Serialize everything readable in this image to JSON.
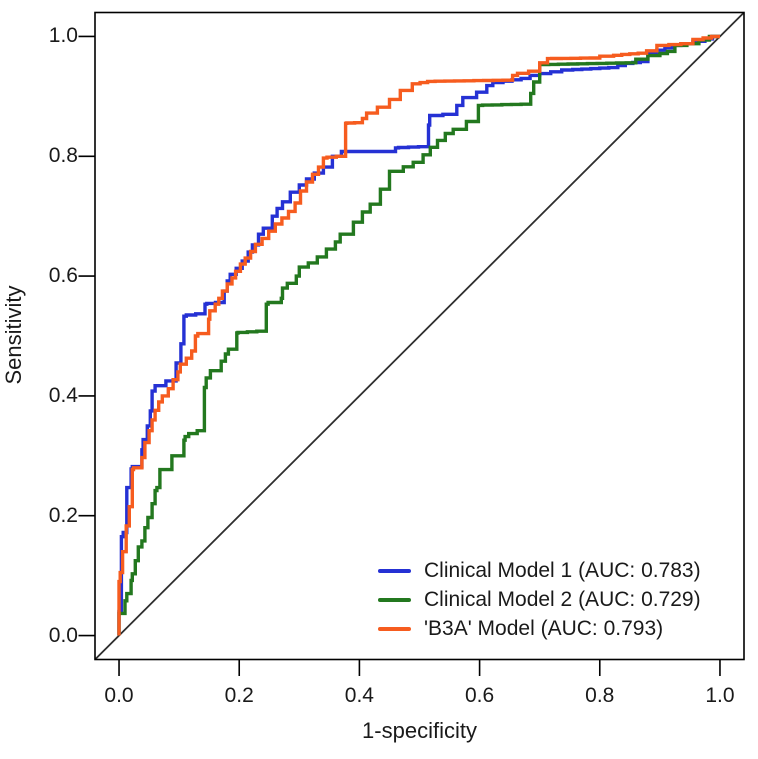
{
  "chart_data": {
    "type": "line",
    "subtype": "roc-step-curves",
    "title": "",
    "xlabel": "1-specificity",
    "ylabel": "Sensitivity",
    "xlim": [
      -0.04,
      1.04
    ],
    "ylim": [
      -0.04,
      1.04
    ],
    "grid": false,
    "legend_position": "bottom-right-inside",
    "axes": {
      "x": {
        "ticks": [
          0.0,
          0.2,
          0.4,
          0.6,
          0.8,
          1.0
        ],
        "tick_labels": [
          "0.0",
          "0.2",
          "0.4",
          "0.6",
          "0.8",
          "1.0"
        ]
      },
      "y": {
        "ticks": [
          0.0,
          0.2,
          0.4,
          0.6,
          0.8,
          1.0
        ],
        "tick_labels": [
          "0.0",
          "0.2",
          "0.4",
          "0.6",
          "0.8",
          "1.0"
        ]
      }
    },
    "reference_line": {
      "name": "chance-diagonal",
      "from": [
        0,
        0
      ],
      "to": [
        1,
        1
      ],
      "color": "#2e2e2e"
    },
    "colors": {
      "frame": "#000000",
      "text": "#1a1a1a",
      "background": "#ffffff"
    },
    "series": [
      {
        "name": "Clinical Model 1",
        "auc": 0.783,
        "label": "Clinical Model 1 (AUC: 0.783)",
        "color": "#2531d4",
        "points": [
          [
            0,
            0
          ],
          [
            0.004,
            0.04
          ],
          [
            0.004,
            0.1
          ],
          [
            0.007,
            0.165
          ],
          [
            0.013,
            0.172
          ],
          [
            0.013,
            0.215
          ],
          [
            0.02,
            0.247
          ],
          [
            0.022,
            0.278
          ],
          [
            0.038,
            0.282
          ],
          [
            0.04,
            0.31
          ],
          [
            0.047,
            0.327
          ],
          [
            0.052,
            0.35
          ],
          [
            0.055,
            0.375
          ],
          [
            0.06,
            0.408
          ],
          [
            0.078,
            0.417
          ],
          [
            0.095,
            0.425
          ],
          [
            0.103,
            0.455
          ],
          [
            0.108,
            0.487
          ],
          [
            0.112,
            0.533
          ],
          [
            0.143,
            0.537
          ],
          [
            0.146,
            0.553
          ],
          [
            0.175,
            0.556
          ],
          [
            0.18,
            0.575
          ],
          [
            0.185,
            0.592
          ],
          [
            0.195,
            0.603
          ],
          [
            0.205,
            0.613
          ],
          [
            0.215,
            0.625
          ],
          [
            0.222,
            0.64
          ],
          [
            0.232,
            0.652
          ],
          [
            0.24,
            0.67
          ],
          [
            0.255,
            0.68
          ],
          [
            0.263,
            0.7
          ],
          [
            0.272,
            0.713
          ],
          [
            0.285,
            0.724
          ],
          [
            0.3,
            0.74
          ],
          [
            0.312,
            0.752
          ],
          [
            0.325,
            0.762
          ],
          [
            0.34,
            0.772
          ],
          [
            0.355,
            0.782
          ],
          [
            0.37,
            0.8
          ],
          [
            0.383,
            0.808
          ],
          [
            0.46,
            0.808
          ],
          [
            0.465,
            0.814
          ],
          [
            0.515,
            0.816
          ],
          [
            0.517,
            0.852
          ],
          [
            0.539,
            0.868
          ],
          [
            0.562,
            0.87
          ],
          [
            0.572,
            0.885
          ],
          [
            0.595,
            0.898
          ],
          [
            0.612,
            0.907
          ],
          [
            0.622,
            0.918
          ],
          [
            0.639,
            0.923
          ],
          [
            0.684,
            0.93
          ],
          [
            0.7,
            0.935
          ],
          [
            0.755,
            0.944
          ],
          [
            0.83,
            0.948
          ],
          [
            0.855,
            0.955
          ],
          [
            0.88,
            0.958
          ],
          [
            0.895,
            0.973
          ],
          [
            0.935,
            0.985
          ],
          [
            0.955,
            0.988
          ],
          [
            0.975,
            0.992
          ],
          [
            1,
            1
          ]
        ]
      },
      {
        "name": "Clinical Model 2",
        "auc": 0.729,
        "label": "Clinical Model 2 (AUC: 0.729)",
        "color": "#23781f",
        "points": [
          [
            0,
            0
          ],
          [
            0.01,
            0.037
          ],
          [
            0.013,
            0.058
          ],
          [
            0.02,
            0.07
          ],
          [
            0.022,
            0.092
          ],
          [
            0.027,
            0.103
          ],
          [
            0.027,
            0.115
          ],
          [
            0.032,
            0.125
          ],
          [
            0.032,
            0.137
          ],
          [
            0.038,
            0.148
          ],
          [
            0.043,
            0.158
          ],
          [
            0.043,
            0.17
          ],
          [
            0.048,
            0.18
          ],
          [
            0.048,
            0.192
          ],
          [
            0.055,
            0.197
          ],
          [
            0.055,
            0.213
          ],
          [
            0.06,
            0.22
          ],
          [
            0.063,
            0.242
          ],
          [
            0.068,
            0.247
          ],
          [
            0.068,
            0.27
          ],
          [
            0.072,
            0.277
          ],
          [
            0.088,
            0.277
          ],
          [
            0.088,
            0.297
          ],
          [
            0.108,
            0.3
          ],
          [
            0.11,
            0.326
          ],
          [
            0.116,
            0.332
          ],
          [
            0.13,
            0.337
          ],
          [
            0.142,
            0.342
          ],
          [
            0.145,
            0.414
          ],
          [
            0.152,
            0.43
          ],
          [
            0.17,
            0.442
          ],
          [
            0.177,
            0.458
          ],
          [
            0.182,
            0.47
          ],
          [
            0.196,
            0.478
          ],
          [
            0.198,
            0.505
          ],
          [
            0.245,
            0.508
          ],
          [
            0.248,
            0.553
          ],
          [
            0.27,
            0.556
          ],
          [
            0.272,
            0.563
          ],
          [
            0.28,
            0.58
          ],
          [
            0.295,
            0.588
          ],
          [
            0.3,
            0.6
          ],
          [
            0.315,
            0.615
          ],
          [
            0.33,
            0.622
          ],
          [
            0.345,
            0.632
          ],
          [
            0.36,
            0.645
          ],
          [
            0.368,
            0.657
          ],
          [
            0.39,
            0.67
          ],
          [
            0.405,
            0.69
          ],
          [
            0.418,
            0.707
          ],
          [
            0.435,
            0.72
          ],
          [
            0.45,
            0.745
          ],
          [
            0.473,
            0.775
          ],
          [
            0.506,
            0.79
          ],
          [
            0.53,
            0.815
          ],
          [
            0.556,
            0.838
          ],
          [
            0.578,
            0.845
          ],
          [
            0.598,
            0.858
          ],
          [
            0.605,
            0.885
          ],
          [
            0.685,
            0.887
          ],
          [
            0.69,
            0.905
          ],
          [
            0.7,
            0.924
          ],
          [
            0.715,
            0.953
          ],
          [
            0.86,
            0.956
          ],
          [
            0.88,
            0.962
          ],
          [
            0.9,
            0.968
          ],
          [
            0.925,
            0.975
          ],
          [
            0.945,
            0.985
          ],
          [
            0.965,
            0.988
          ],
          [
            1,
            1
          ]
        ]
      },
      {
        "name": "'B3A' Model",
        "auc": 0.793,
        "label": "'B3A' Model (AUC: 0.793)",
        "color": "#f65c1f",
        "points": [
          [
            0,
            0
          ],
          [
            0.002,
            0.09
          ],
          [
            0.006,
            0.105
          ],
          [
            0.006,
            0.125
          ],
          [
            0.012,
            0.14
          ],
          [
            0.012,
            0.168
          ],
          [
            0.017,
            0.183
          ],
          [
            0.017,
            0.205
          ],
          [
            0.022,
            0.215
          ],
          [
            0.022,
            0.24
          ],
          [
            0.024,
            0.277
          ],
          [
            0.038,
            0.28
          ],
          [
            0.038,
            0.292
          ],
          [
            0.043,
            0.297
          ],
          [
            0.043,
            0.315
          ],
          [
            0.05,
            0.322
          ],
          [
            0.055,
            0.342
          ],
          [
            0.06,
            0.36
          ],
          [
            0.066,
            0.376
          ],
          [
            0.072,
            0.39
          ],
          [
            0.082,
            0.4
          ],
          [
            0.09,
            0.412
          ],
          [
            0.098,
            0.427
          ],
          [
            0.102,
            0.44
          ],
          [
            0.112,
            0.453
          ],
          [
            0.121,
            0.463
          ],
          [
            0.127,
            0.475
          ],
          [
            0.131,
            0.5
          ],
          [
            0.149,
            0.504
          ],
          [
            0.151,
            0.528
          ],
          [
            0.16,
            0.542
          ],
          [
            0.166,
            0.553
          ],
          [
            0.172,
            0.563
          ],
          [
            0.18,
            0.575
          ],
          [
            0.188,
            0.587
          ],
          [
            0.194,
            0.597
          ],
          [
            0.202,
            0.608
          ],
          [
            0.21,
            0.62
          ],
          [
            0.219,
            0.63
          ],
          [
            0.227,
            0.641
          ],
          [
            0.238,
            0.653
          ],
          [
            0.249,
            0.663
          ],
          [
            0.26,
            0.675
          ],
          [
            0.271,
            0.687
          ],
          [
            0.282,
            0.697
          ],
          [
            0.293,
            0.708
          ],
          [
            0.302,
            0.722
          ],
          [
            0.312,
            0.742
          ],
          [
            0.322,
            0.757
          ],
          [
            0.332,
            0.77
          ],
          [
            0.34,
            0.782
          ],
          [
            0.346,
            0.797
          ],
          [
            0.377,
            0.8
          ],
          [
            0.379,
            0.855
          ],
          [
            0.405,
            0.856
          ],
          [
            0.412,
            0.863
          ],
          [
            0.43,
            0.872
          ],
          [
            0.45,
            0.882
          ],
          [
            0.468,
            0.895
          ],
          [
            0.488,
            0.91
          ],
          [
            0.501,
            0.921
          ],
          [
            0.526,
            0.925
          ],
          [
            0.655,
            0.927
          ],
          [
            0.663,
            0.935
          ],
          [
            0.7,
            0.942
          ],
          [
            0.713,
            0.956
          ],
          [
            0.72,
            0.963
          ],
          [
            0.8,
            0.964
          ],
          [
            0.823,
            0.967
          ],
          [
            0.85,
            0.97
          ],
          [
            0.878,
            0.972
          ],
          [
            0.895,
            0.976
          ],
          [
            0.915,
            0.985
          ],
          [
            0.955,
            0.988
          ],
          [
            0.972,
            0.995
          ],
          [
            1,
            1
          ]
        ]
      }
    ]
  }
}
